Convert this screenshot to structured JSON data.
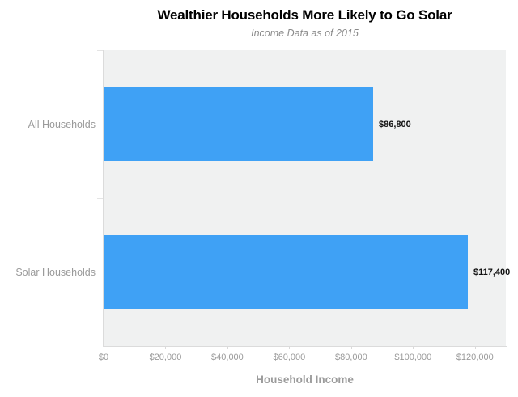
{
  "title": "Wealthier Households More Likely to Go Solar",
  "subtitle": "Income Data as of 2015",
  "chart_data": {
    "type": "bar",
    "orientation": "horizontal",
    "title": "Wealthier Households More Likely to Go Solar",
    "subtitle": "Income Data as of 2015",
    "xlabel": "Household Income",
    "ylabel": "",
    "categories": [
      "All Households",
      "Solar Households"
    ],
    "values": [
      86800,
      117400
    ],
    "value_labels": [
      "$86,800",
      "$117,400"
    ],
    "x_ticks": [
      0,
      20000,
      40000,
      60000,
      80000,
      100000,
      120000
    ],
    "x_tick_labels": [
      "$0",
      "$20,000",
      "$40,000",
      "$60,000",
      "$80,000",
      "$100,000",
      "$120,000"
    ],
    "xlim": [
      0,
      130000
    ],
    "grid": false,
    "legend": false,
    "colors": {
      "bar": "#3fa1f5",
      "plot_background": "#f0f1f1",
      "axis_line": "#dbdbdb",
      "tick_label": "#9a9a9a",
      "category_label": "#9a9a9a",
      "value_label": "#111111",
      "title": "#000000",
      "subtitle": "#8a8a8a",
      "xlabel": "#9b9b9b"
    }
  }
}
